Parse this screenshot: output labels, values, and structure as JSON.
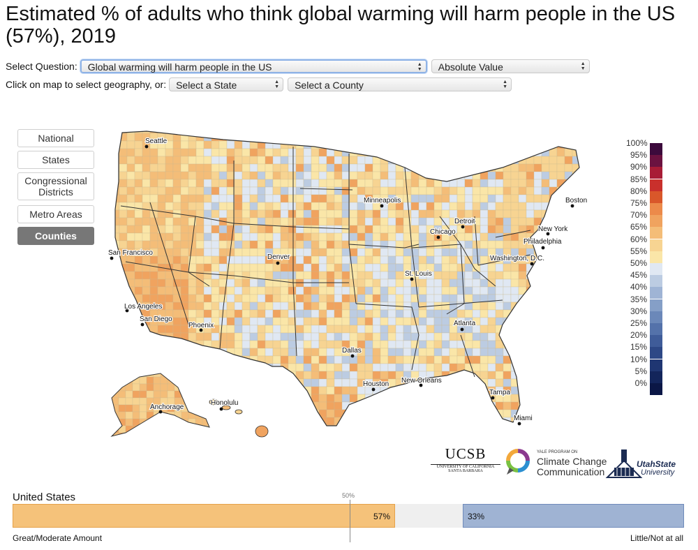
{
  "title": "Estimated % of adults who think global warming will harm people in the US (57%), 2019",
  "controls": {
    "select_question_label": "Select Question:",
    "question_value": "Global warming will harm people in the US",
    "value_type": "Absolute Value",
    "geo_prompt": "Click on map to select geography, or:",
    "state_value": "Select a State",
    "county_value": "Select a County"
  },
  "geo_buttons": [
    "National",
    "States",
    "Congressional Districts",
    "Metro Areas",
    "Counties"
  ],
  "active_geo": "Counties",
  "cities": [
    "Seattle",
    "San Francisco",
    "Los Angeles",
    "San Diego",
    "Phoenix",
    "Denver",
    "Minneapolis",
    "Chicago",
    "Detroit",
    "St. Louis",
    "Dallas",
    "Houston",
    "New Orleans",
    "Atlanta",
    "Tampa",
    "Miami",
    "Washington, D.C.",
    "Philadelphia",
    "New York",
    "Boston",
    "Anchorage",
    "Honolulu"
  ],
  "legend": {
    "labels": [
      "100%",
      "95%",
      "90%",
      "85%",
      "80%",
      "75%",
      "70%",
      "65%",
      "60%",
      "55%",
      "50%",
      "45%",
      "40%",
      "35%",
      "30%",
      "25%",
      "20%",
      "15%",
      "10%",
      "5%",
      "0%"
    ],
    "colors": [
      "#3c0a3c",
      "#6b1240",
      "#a81c36",
      "#c9302c",
      "#d9572a",
      "#ec8a4a",
      "#f0a35f",
      "#f4bd78",
      "#f7d492",
      "#fae6a8",
      "#e0e8f3",
      "#bccce2",
      "#9fb4d5",
      "#859fc7",
      "#6b88b9",
      "#5472aa",
      "#3f5c99",
      "#2d4886",
      "#1f3672",
      "#13255b",
      "#0b1746"
    ]
  },
  "logos": {
    "ucsb": "UCSB",
    "ucsb_sub1": "UNIVERSITY OF CALIFORNIA",
    "ucsb_sub2": "SANTA BARBARA",
    "yale_top": "YALE PROGRAM ON",
    "yale_line1": "Climate Change",
    "yale_line2": "Communication",
    "usu_line1": "UtahState",
    "usu_line2": "University"
  },
  "summary": {
    "region": "United States",
    "fifty_label": "50%",
    "great_moderate": "57%",
    "little_not": "33%",
    "left_label": "Great/Moderate Amount",
    "right_label": "Little/Not at all",
    "great_moderate_fraction": 0.57,
    "little_not_fraction": 0.33,
    "colors": {
      "agree": "#f5c27a",
      "neutral": "#efefef",
      "disagree": "#9fb3d3"
    }
  }
}
